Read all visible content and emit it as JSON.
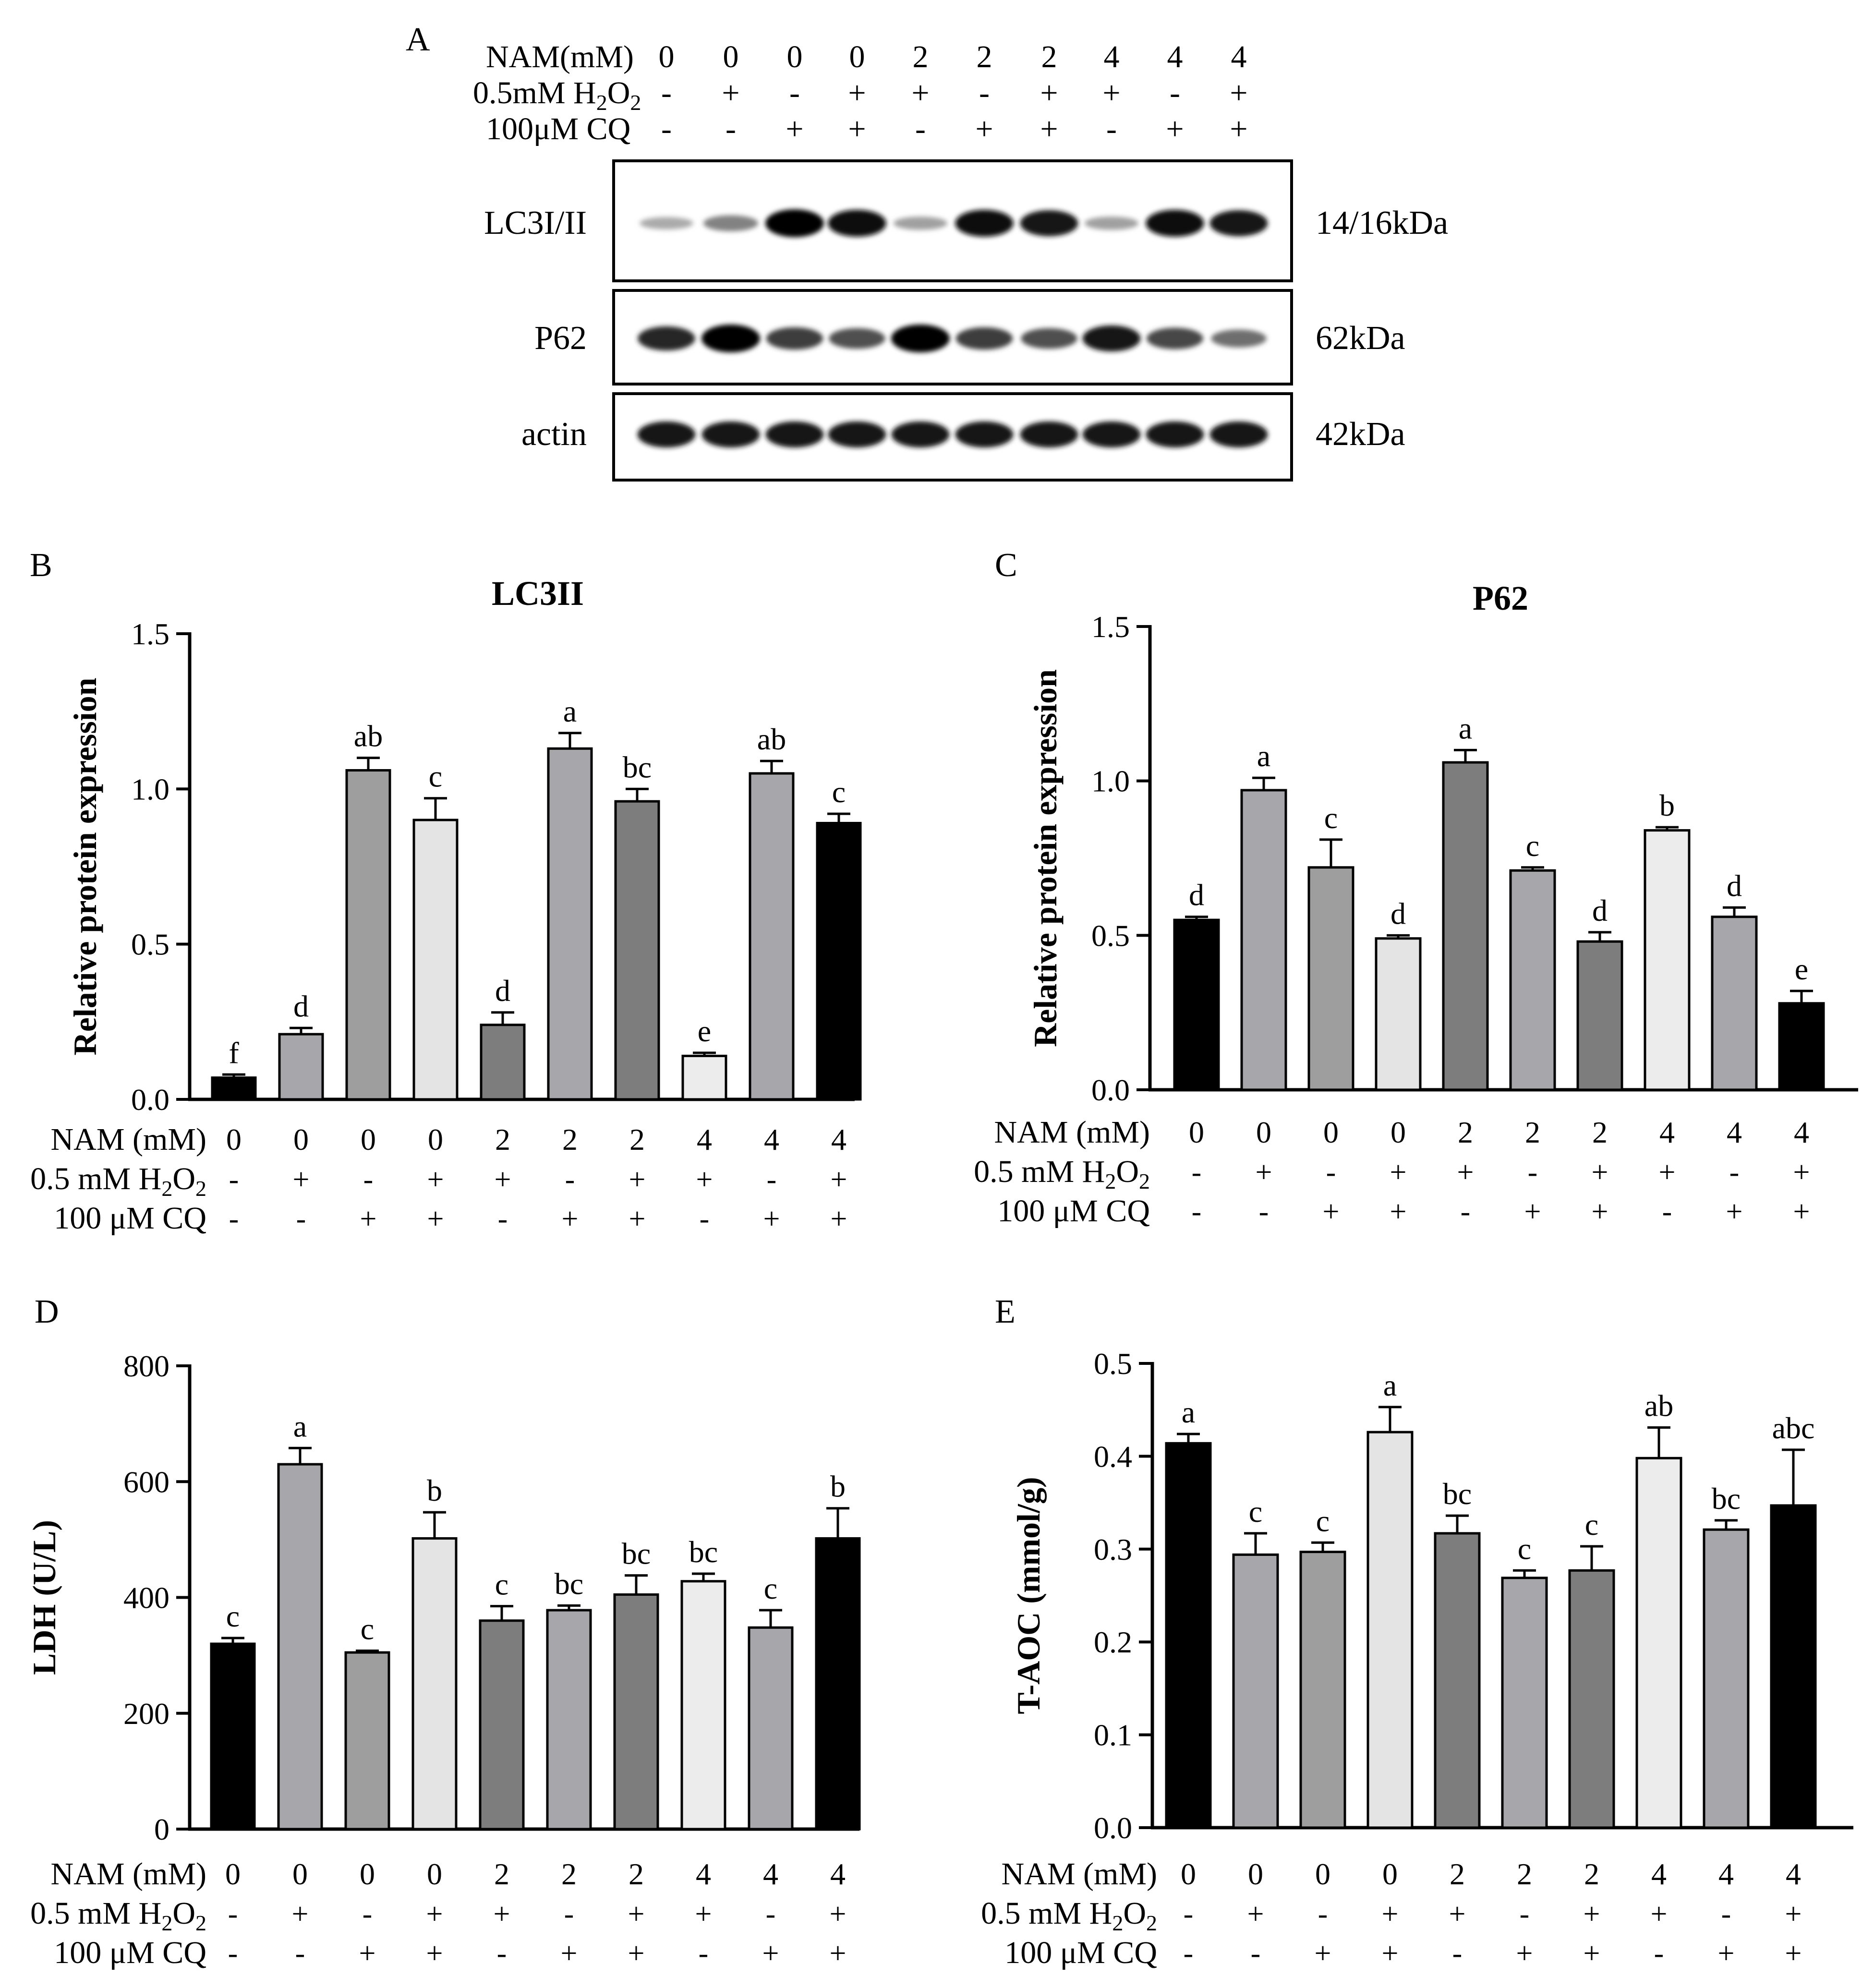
{
  "western_blot": {
    "panel_letter": "A",
    "conditions": {
      "nam_label": "NAM(mM)",
      "h2o2_label": "0.5mM H",
      "h2o2_sub1": "2",
      "h2o2_mid": "O",
      "h2o2_sub2": "2",
      "cq_label": "100μM CQ",
      "nam": [
        "0",
        "0",
        "0",
        "0",
        "2",
        "2",
        "2",
        "4",
        "4",
        "4"
      ],
      "h2o2": [
        "-",
        "+",
        "-",
        "+",
        "+",
        "-",
        "+",
        "+",
        "-",
        "+"
      ],
      "cq": [
        "-",
        "-",
        "+",
        "+",
        "-",
        "+",
        "+",
        "-",
        "+",
        "+"
      ]
    },
    "blots": [
      {
        "name": "LC3I/II",
        "size": "14/16kDa",
        "intensity": [
          0.15,
          0.35,
          1.0,
          0.95,
          0.2,
          0.95,
          0.9,
          0.2,
          0.95,
          0.9
        ]
      },
      {
        "name": "P62",
        "size": "62kDa",
        "intensity": [
          0.8,
          1.0,
          0.7,
          0.6,
          1.0,
          0.7,
          0.6,
          0.9,
          0.65,
          0.45
        ]
      },
      {
        "name": "actin",
        "size": "42kDa",
        "intensity": [
          0.9,
          0.9,
          0.9,
          0.9,
          0.9,
          0.9,
          0.9,
          0.9,
          0.9,
          0.9
        ]
      }
    ]
  },
  "conditions_table": {
    "nam_label": "NAM (mM)",
    "h2o2_label": "0.5 mM H",
    "h2o2_sub1": "2",
    "h2o2_mid": "O",
    "h2o2_sub2": "2",
    "cq_label": "100 μM CQ",
    "nam": [
      "0",
      "0",
      "0",
      "0",
      "2",
      "2",
      "2",
      "4",
      "4",
      "4"
    ],
    "h2o2": [
      "-",
      "+",
      "-",
      "+",
      "+",
      "-",
      "+",
      "+",
      "-",
      "+"
    ],
    "cq": [
      "-",
      "-",
      "+",
      "+",
      "-",
      "+",
      "+",
      "-",
      "+",
      "+"
    ]
  },
  "chart_data": [
    {
      "panel": "B",
      "type": "bar",
      "title": "LC3II",
      "ylabel": "Relative protein expression",
      "ylim": [
        0,
        1.5
      ],
      "yticks": [
        "0.0",
        "0.5",
        "1.0",
        "1.5"
      ],
      "values": [
        0.07,
        0.21,
        1.06,
        0.9,
        0.24,
        1.13,
        0.96,
        0.14,
        1.05,
        0.89
      ],
      "errors": [
        0.01,
        0.02,
        0.04,
        0.07,
        0.04,
        0.05,
        0.04,
        0.01,
        0.04,
        0.03
      ],
      "letters": [
        "f",
        "d",
        "ab",
        "c",
        "d",
        "a",
        "bc",
        "e",
        "ab",
        "c"
      ],
      "colors": [
        "#000000",
        "#a7a7ab",
        "#9e9e9e",
        "#e4e4e4",
        "#7d7d7d",
        "#a7a7ab",
        "#7d7d7d",
        "#ececec",
        "#a7a7ab",
        "#000000"
      ]
    },
    {
      "panel": "C",
      "type": "bar",
      "title": "P62",
      "ylabel": "Relative protein expression",
      "ylim": [
        0,
        1.5
      ],
      "yticks": [
        "0.0",
        "0.5",
        "1.0",
        "1.5"
      ],
      "values": [
        0.55,
        0.97,
        0.72,
        0.49,
        1.06,
        0.71,
        0.48,
        0.84,
        0.56,
        0.28
      ],
      "errors": [
        0.01,
        0.04,
        0.09,
        0.01,
        0.04,
        0.01,
        0.03,
        0.01,
        0.03,
        0.04
      ],
      "letters": [
        "d",
        "a",
        "c",
        "d",
        "a",
        "c",
        "d",
        "b",
        "d",
        "e"
      ],
      "colors": [
        "#000000",
        "#a7a7ab",
        "#9e9e9e",
        "#e4e4e4",
        "#7d7d7d",
        "#a7a7ab",
        "#7d7d7d",
        "#ececec",
        "#a7a7ab",
        "#000000"
      ]
    },
    {
      "panel": "D",
      "type": "bar",
      "title": "",
      "ylabel": "LDH (U/L)",
      "ylim": [
        0,
        800
      ],
      "yticks": [
        "0",
        "200",
        "400",
        "600",
        "800"
      ],
      "values": [
        320,
        630,
        305,
        502,
        360,
        378,
        405,
        428,
        348,
        502
      ],
      "errors": [
        10,
        28,
        3,
        45,
        25,
        8,
        33,
        13,
        30,
        52
      ],
      "letters": [
        "c",
        "a",
        "c",
        "b",
        "c",
        "bc",
        "bc",
        "bc",
        "c",
        "b"
      ],
      "colors": [
        "#000000",
        "#a7a7ab",
        "#9e9e9e",
        "#e4e4e4",
        "#7d7d7d",
        "#a7a7ab",
        "#7d7d7d",
        "#ececec",
        "#a7a7ab",
        "#000000"
      ]
    },
    {
      "panel": "E",
      "type": "bar",
      "title": "",
      "ylabel": "T-AOC (mmol/g)",
      "ylim": [
        0,
        0.5
      ],
      "yticks": [
        "0.0",
        "0.1",
        "0.2",
        "0.3",
        "0.4",
        "0.5"
      ],
      "values": [
        0.414,
        0.294,
        0.297,
        0.426,
        0.317,
        0.269,
        0.277,
        0.398,
        0.321,
        0.347
      ],
      "errors": [
        0.01,
        0.023,
        0.01,
        0.027,
        0.019,
        0.008,
        0.026,
        0.033,
        0.01,
        0.06
      ],
      "letters": [
        "a",
        "c",
        "c",
        "a",
        "bc",
        "c",
        "c",
        "ab",
        "bc",
        "abc"
      ],
      "colors": [
        "#000000",
        "#a7a7ab",
        "#9e9e9e",
        "#e4e4e4",
        "#7d7d7d",
        "#a7a7ab",
        "#7d7d7d",
        "#ececec",
        "#a7a7ab",
        "#000000"
      ]
    }
  ]
}
